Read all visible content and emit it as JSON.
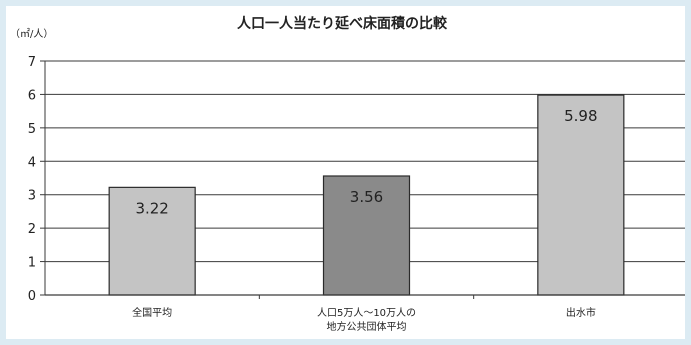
{
  "chart_data": {
    "type": "bar",
    "title": "人口一人当たり延べ床面積の比較",
    "ylabel": "（㎡/人）",
    "xlabel": "",
    "categories": [
      [
        "全国平均"
      ],
      [
        "人口5万人～10万人の",
        "地方公共団体平均"
      ],
      [
        "出水市"
      ]
    ],
    "values": [
      3.22,
      3.56,
      5.98
    ],
    "value_labels": [
      "3.22",
      "3.56",
      "5.98"
    ],
    "bar_colors": [
      "#c4c4c4",
      "#8a8a8a",
      "#c4c4c4"
    ],
    "ylim": [
      0,
      7
    ],
    "yticks": [
      0,
      1,
      2,
      3,
      4,
      5,
      6,
      7
    ],
    "grid": true,
    "legend": "none"
  }
}
